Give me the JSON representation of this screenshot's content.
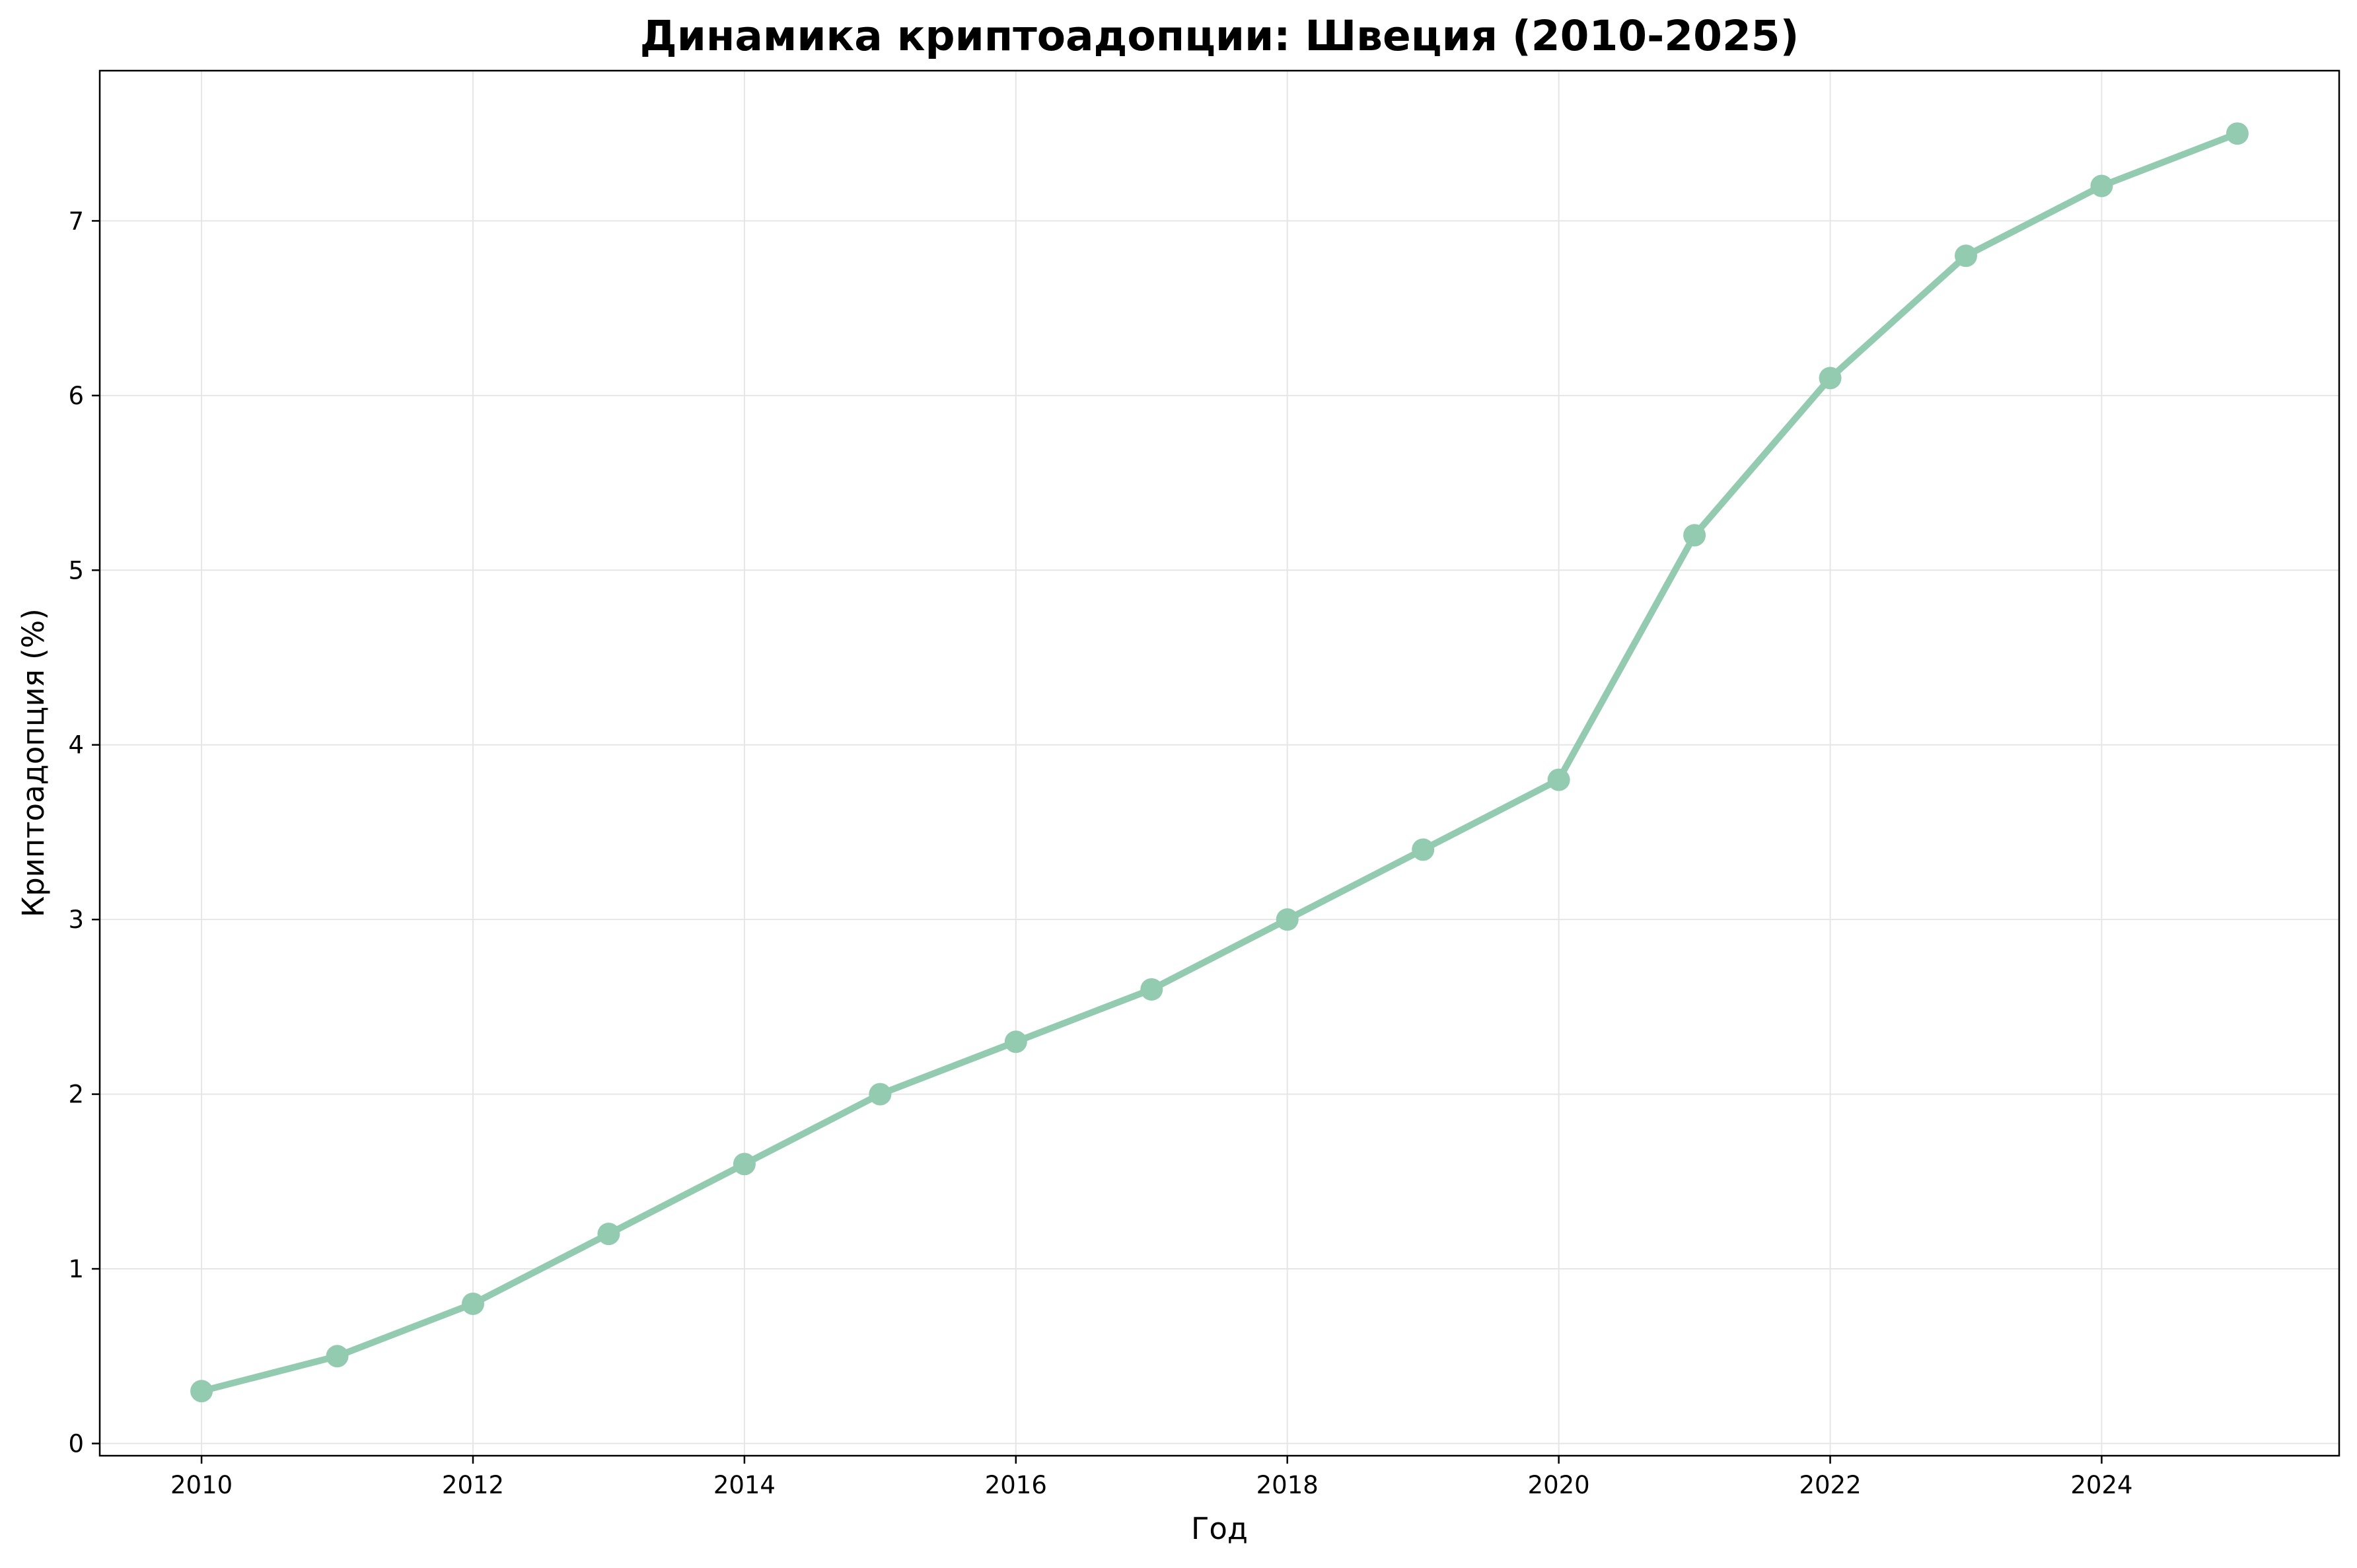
{
  "chart_data": {
    "type": "line",
    "title": "Динамика криптоадопции: Швеция (2010-2025)",
    "xlabel": "Год",
    "ylabel": "Криптоадопция (%)",
    "x": [
      2010,
      2011,
      2012,
      2013,
      2014,
      2015,
      2016,
      2017,
      2018,
      2019,
      2020,
      2021,
      2022,
      2023,
      2024,
      2025
    ],
    "series": [
      {
        "values": [
          0.3,
          0.5,
          0.8,
          1.2,
          1.6,
          2.0,
          2.3,
          2.6,
          3.0,
          3.4,
          3.8,
          5.2,
          6.1,
          6.8,
          7.2,
          7.5
        ],
        "color": "#93cbb1"
      }
    ],
    "xlim": [
      2009.25,
      2025.75
    ],
    "ylim": [
      -0.07,
      7.86
    ],
    "xticks": [
      "2010",
      "2012",
      "2014",
      "2016",
      "2018",
      "2020",
      "2022",
      "2024"
    ],
    "yticks": [
      "0",
      "1",
      "2",
      "3",
      "4",
      "5",
      "6",
      "7"
    ],
    "grid": true,
    "legend": "none",
    "colors": {
      "line": "#93cbb1",
      "grid": "#e6e6e6",
      "axes": "#000000"
    }
  }
}
